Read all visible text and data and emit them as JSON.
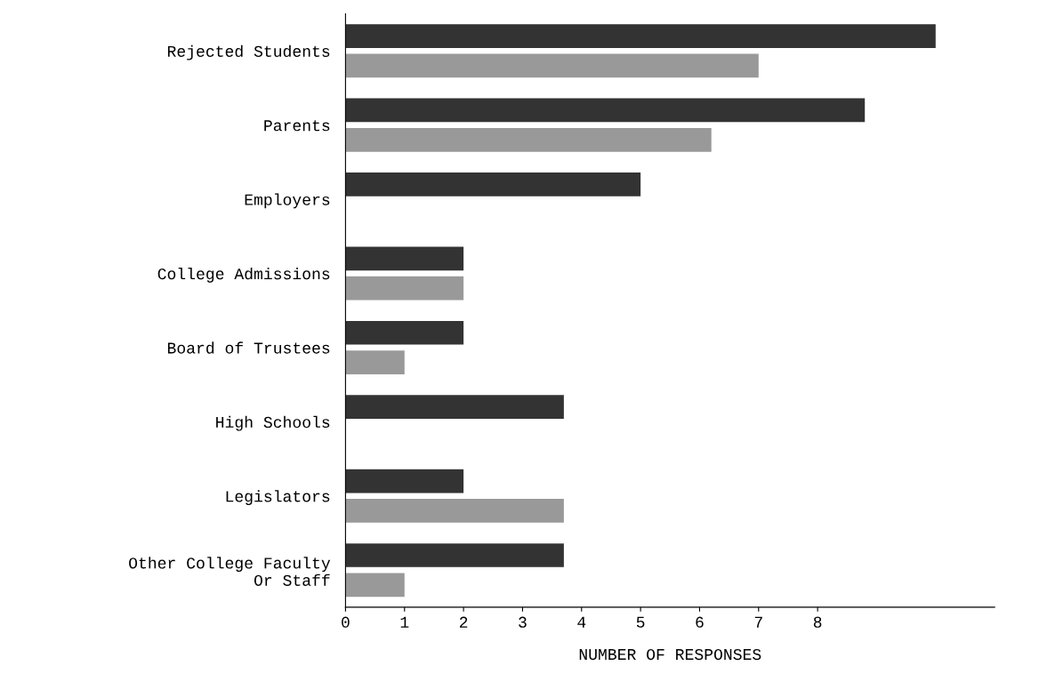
{
  "chart_data": {
    "type": "bar",
    "orientation": "horizontal",
    "xlabel": "NUMBER OF RESPONSES",
    "categories": [
      "Rejected Students",
      "Parents",
      "Employers",
      "College Admissions",
      "Board of Trustees",
      "High Schools",
      "Legislators",
      "Other College Faculty\nOr Staff"
    ],
    "series": [
      {
        "color": "#333333",
        "values": [
          10,
          8.8,
          5,
          2,
          2,
          3.7,
          2,
          3.7
        ]
      },
      {
        "color": "#999999",
        "values": [
          7,
          6.2,
          null,
          2,
          1,
          null,
          3.7,
          1
        ]
      }
    ],
    "xlim": [
      0,
      11
    ],
    "xticks": [
      0,
      1,
      2,
      3,
      4,
      5,
      6,
      7,
      8
    ],
    "grid": false,
    "legend": false
  }
}
